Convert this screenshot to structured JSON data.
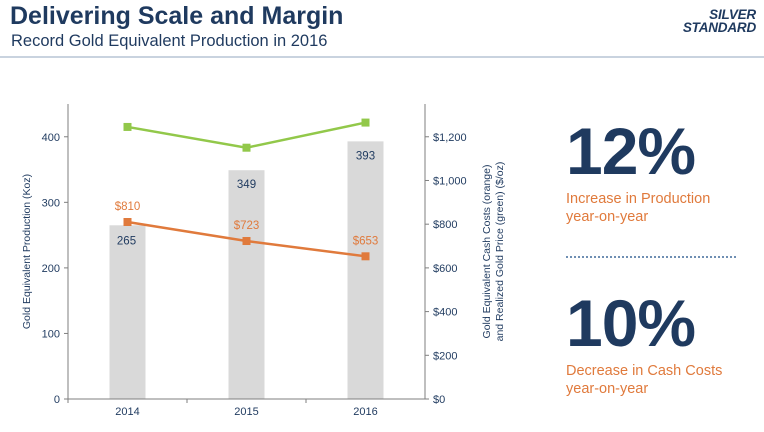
{
  "header": {
    "title": "Delivering Scale and Margin",
    "subtitle": "Record Gold Equivalent Production in 2016",
    "logo_line1": "SILVER",
    "logo_line2": "STANDARD"
  },
  "stats": [
    {
      "value": "12%",
      "desc_line1": "Increase in Production",
      "desc_line2": "year-on-year"
    },
    {
      "value": "10%",
      "desc_line1": "Decrease in Cash Costs",
      "desc_line2": "year-on-year"
    }
  ],
  "colors": {
    "bar": "#d9d9d9",
    "cash_cost_line": "#e07a3c",
    "gold_price_line": "#92c84a",
    "text": "#1f3a5f",
    "axis": "#7f7f7f"
  },
  "chart_data": {
    "type": "bar",
    "categories": [
      "2014",
      "2015",
      "2016"
    ],
    "series": [
      {
        "name": "Gold Equivalent Production (Koz)",
        "type": "bar",
        "axis": "left",
        "values": [
          265,
          349,
          393
        ],
        "labels": [
          "265",
          "349",
          "393"
        ]
      },
      {
        "name": "Cash Costs",
        "type": "line",
        "axis": "right",
        "values": [
          810,
          723,
          653
        ],
        "labels": [
          "$810",
          "$723",
          "$653"
        ]
      },
      {
        "name": "Realized Gold Price",
        "type": "line",
        "axis": "right",
        "values": [
          1245,
          1150,
          1265
        ],
        "labels": []
      }
    ],
    "ylabel": "Gold Equivalent Production (Koz)",
    "y2label_line1": "Gold Equivalent Cash Costs (orange)",
    "y2label_line2": "and Realized Gold Price (green)  ($/oz)",
    "ylim": [
      0,
      450
    ],
    "y2lim": [
      0,
      1350
    ],
    "yticks": [
      0,
      100,
      200,
      300,
      400
    ],
    "ytick_labels": [
      "0",
      "100",
      "200",
      "300",
      "400"
    ],
    "y2ticks": [
      0,
      200,
      400,
      600,
      800,
      1000,
      1200
    ],
    "y2tick_labels": [
      "$0",
      "$200",
      "$400",
      "$600",
      "$800",
      "$1,000",
      "$1,200"
    ],
    "grid": false,
    "legend": "none"
  }
}
